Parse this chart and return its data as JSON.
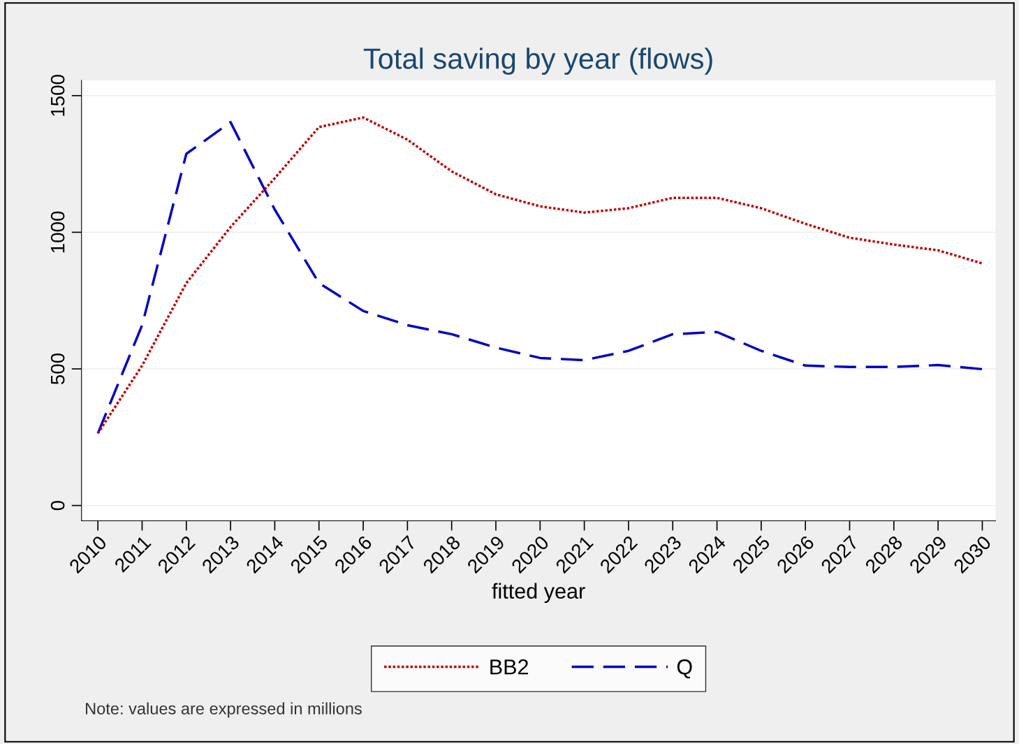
{
  "chart_data": {
    "type": "line",
    "title": "Total saving by year (flows)",
    "xlabel": "fitted year",
    "categories": [
      "2010",
      "2011",
      "2012",
      "2013",
      "2014",
      "2015",
      "2016",
      "2017",
      "2018",
      "2019",
      "2020",
      "2021",
      "2022",
      "2023",
      "2024",
      "2025",
      "2026",
      "2027",
      "2028",
      "2029",
      "2030"
    ],
    "series": [
      {
        "name": "BB2",
        "color": "#c10000",
        "line_style": "dotted",
        "values": [
          264,
          512,
          814,
          1019,
          1198,
          1385,
          1420,
          1339,
          1223,
          1139,
          1095,
          1072,
          1088,
          1126,
          1126,
          1088,
          1031,
          980,
          955,
          934,
          886
        ]
      },
      {
        "name": "Q",
        "color": "#0000c8",
        "line_style": "dashed",
        "values": [
          264,
          660,
          1287,
          1403,
          1083,
          814,
          712,
          660,
          627,
          578,
          540,
          532,
          566,
          627,
          635,
          566,
          512,
          507,
          507,
          514,
          499
        ]
      }
    ],
    "ylim": [
      -56,
      1556
    ],
    "yticks": [
      0,
      500,
      1000,
      1500
    ],
    "grid": "y",
    "legend": "bottom",
    "marker": "none",
    "annotations": [
      "Note: values are expressed in millions"
    ]
  }
}
